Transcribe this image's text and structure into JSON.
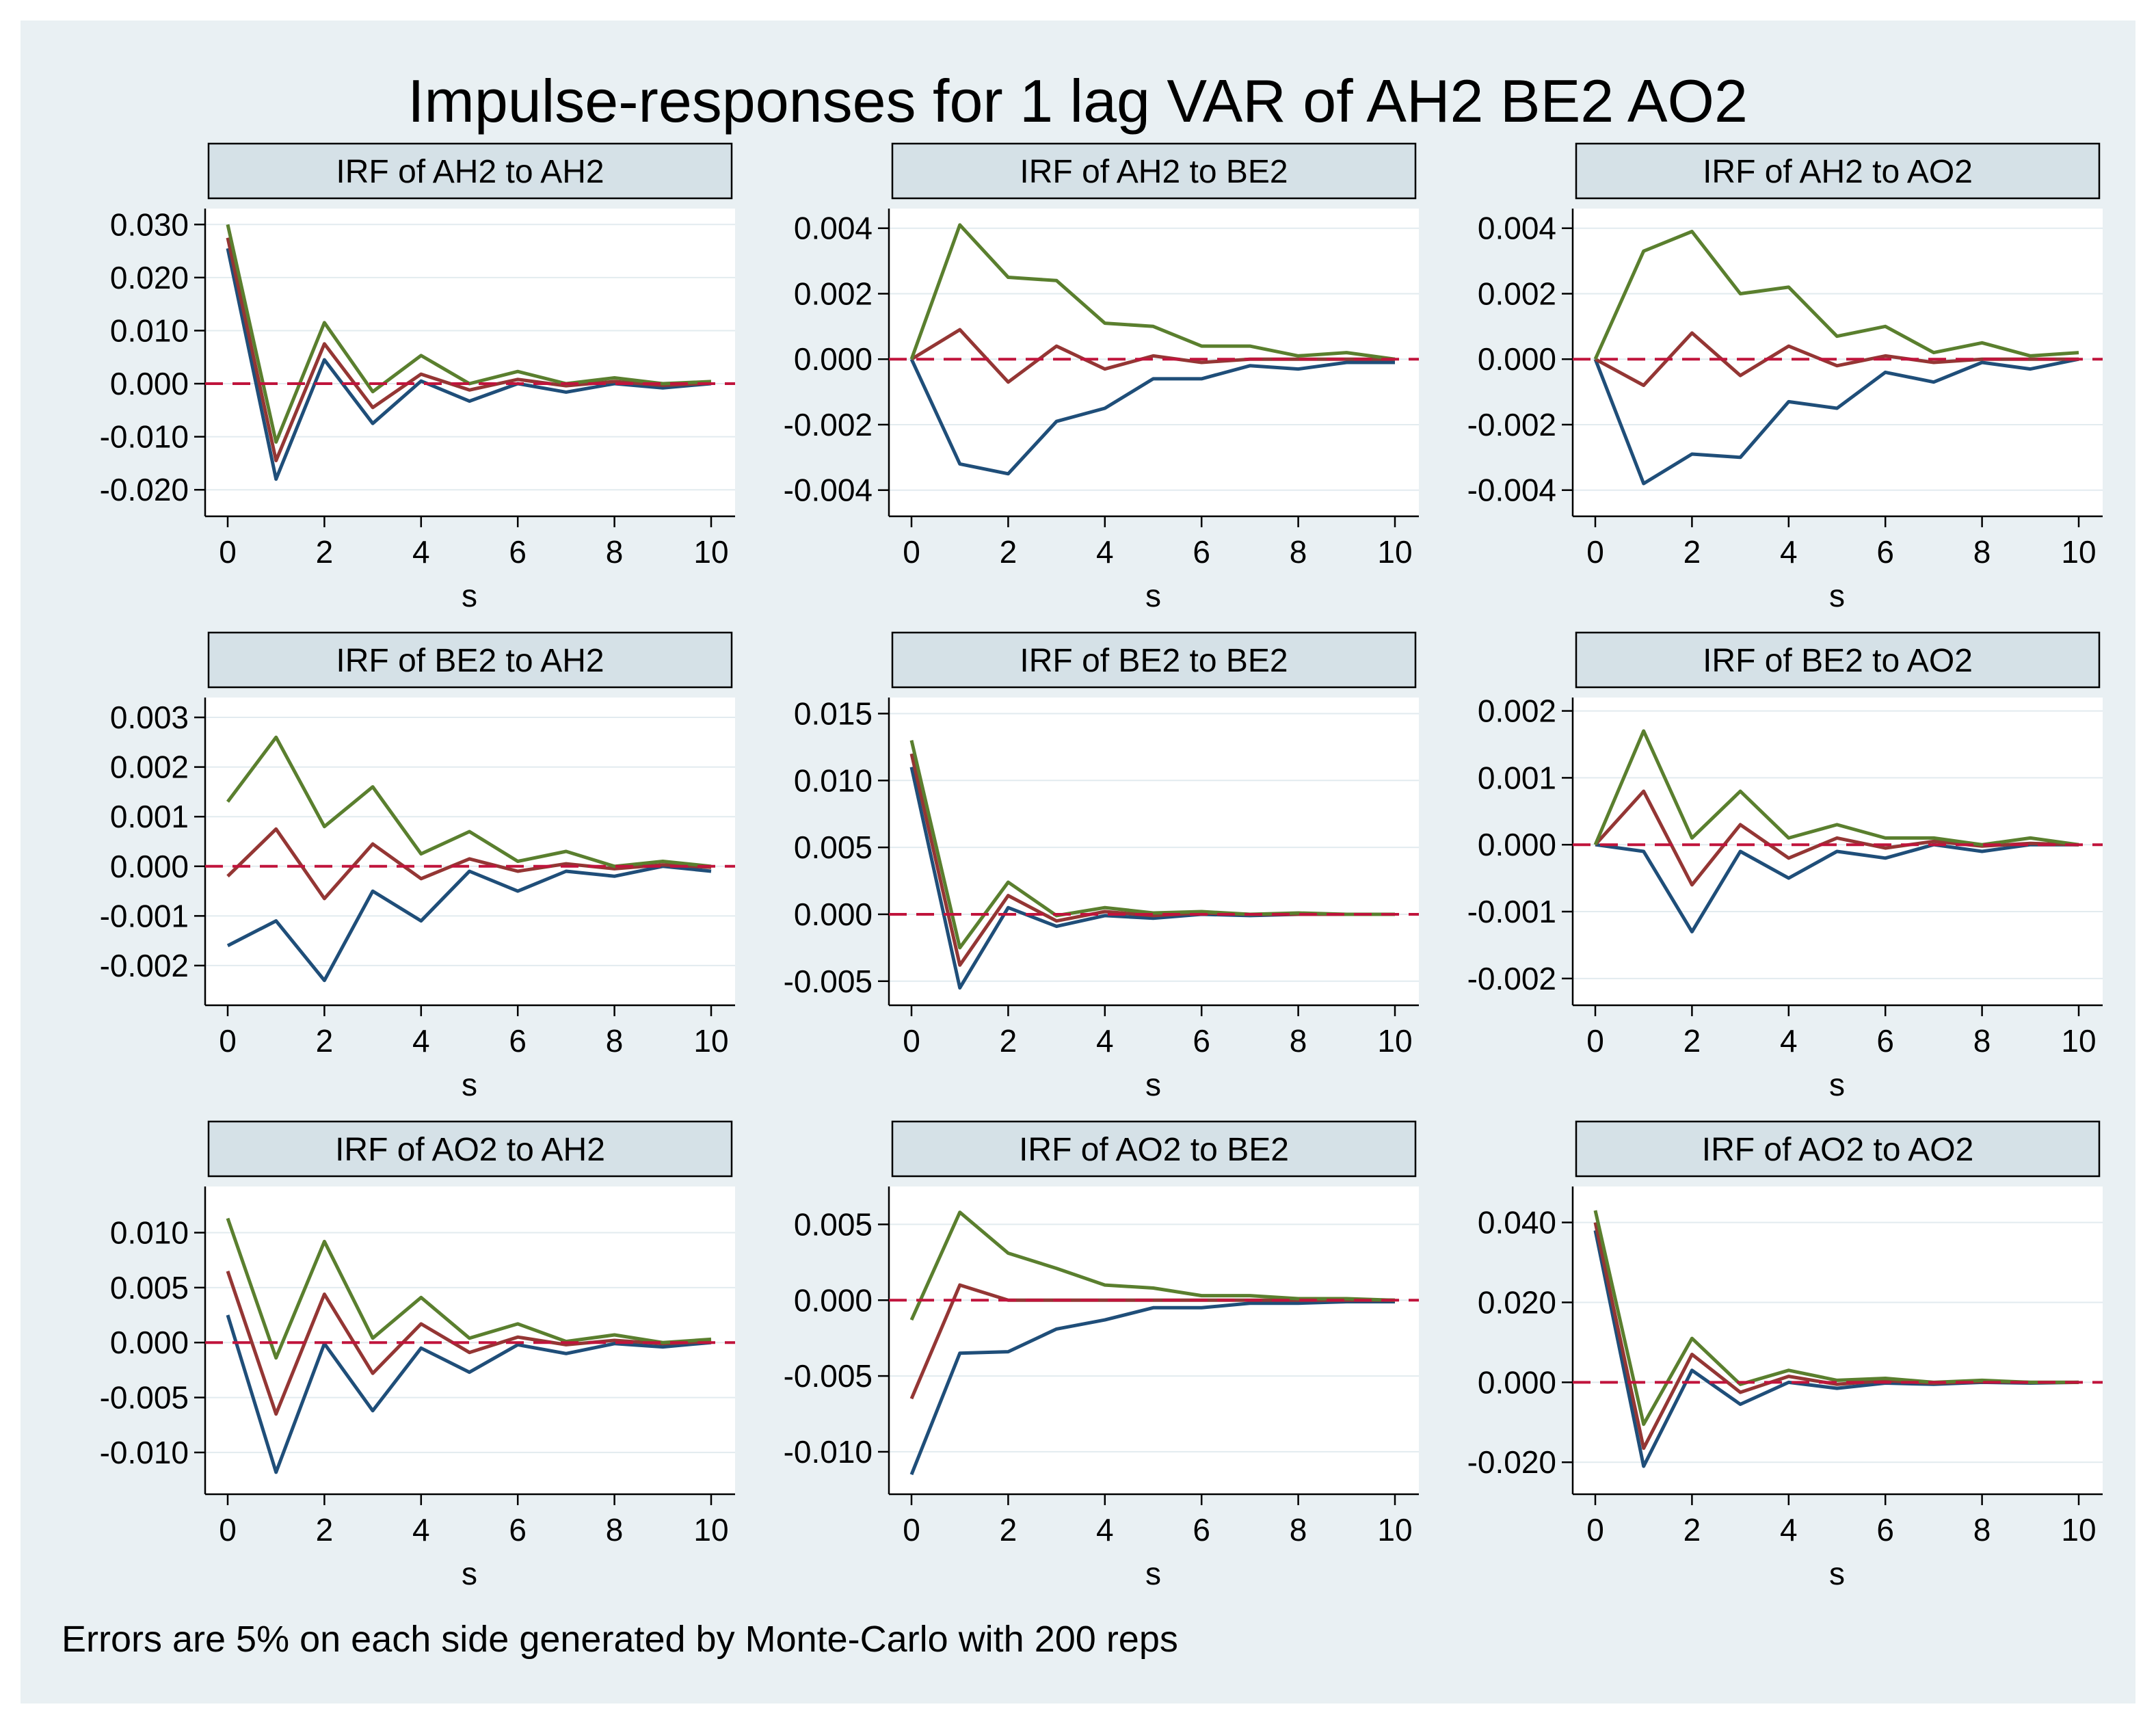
{
  "title": "Impulse-responses for 1 lag VAR of AH2 BE2 AO2",
  "note": "Errors are 5% on each side generated by Monte-Carlo with 200 reps",
  "colors": {
    "background": "#e9f0f3",
    "strip": "#d5e1e7",
    "lower": "#1f4e79",
    "irf": "#943634",
    "upper": "#5a7f2e",
    "zero": "#c0143c"
  },
  "chart_data": [
    {
      "type": "line",
      "title": "IRF of AH2 to AH2",
      "xlabel": "s",
      "x": [
        0,
        1,
        2,
        3,
        4,
        5,
        6,
        7,
        8,
        9,
        10
      ],
      "xticks": [
        0,
        2,
        4,
        6,
        8,
        10
      ],
      "xtick_labels": [
        "0",
        "2",
        "4",
        "6",
        "8",
        "10"
      ],
      "ylim": [
        -0.025,
        0.033
      ],
      "yticks": [
        -0.02,
        -0.01,
        0,
        0.01,
        0.02,
        0.03
      ],
      "ytick_labels": [
        "-0.020",
        "-0.010",
        "0.000",
        "0.010",
        "0.020",
        "0.030"
      ],
      "reference_line": 0,
      "series": [
        {
          "name": "lower",
          "values": [
            0.0255,
            -0.018,
            0.0045,
            -0.0075,
            0.0005,
            -0.0033,
            0.0,
            -0.0016,
            0.0,
            -0.0008,
            0.0
          ]
        },
        {
          "name": "irf",
          "values": [
            0.0275,
            -0.0145,
            0.0075,
            -0.0045,
            0.0018,
            -0.0012,
            0.0008,
            -0.0004,
            0.0004,
            -0.0003,
            0.0001
          ]
        },
        {
          "name": "upper",
          "values": [
            0.03,
            -0.011,
            0.0115,
            -0.0015,
            0.0053,
            0.0,
            0.0023,
            0.0,
            0.0011,
            0.0,
            0.0004
          ]
        }
      ]
    },
    {
      "type": "line",
      "title": "IRF of AH2 to BE2",
      "xlabel": "s",
      "x": [
        0,
        1,
        2,
        3,
        4,
        5,
        6,
        7,
        8,
        9,
        10
      ],
      "xticks": [
        0,
        2,
        4,
        6,
        8,
        10
      ],
      "xtick_labels": [
        "0",
        "2",
        "4",
        "6",
        "8",
        "10"
      ],
      "ylim": [
        -0.0048,
        0.0046
      ],
      "yticks": [
        -0.004,
        -0.002,
        0,
        0.002,
        0.004
      ],
      "ytick_labels": [
        "-0.004",
        "-0.002",
        "0.000",
        "0.002",
        "0.004"
      ],
      "reference_line": 0,
      "series": [
        {
          "name": "lower",
          "values": [
            0.0,
            -0.0032,
            -0.0035,
            -0.0019,
            -0.0015,
            -0.0006,
            -0.0006,
            -0.0002,
            -0.0003,
            -0.0001,
            -0.0001
          ]
        },
        {
          "name": "irf",
          "values": [
            0.0,
            0.0009,
            -0.0007,
            0.0004,
            -0.0003,
            0.0001,
            -0.0001,
            0.0,
            0.0,
            0.0,
            0.0
          ]
        },
        {
          "name": "upper",
          "values": [
            0.0,
            0.0041,
            0.0025,
            0.0024,
            0.0011,
            0.001,
            0.0004,
            0.0004,
            0.0001,
            0.0002,
            0.0
          ]
        }
      ]
    },
    {
      "type": "line",
      "title": "IRF of AH2 to AO2",
      "xlabel": "s",
      "x": [
        0,
        1,
        2,
        3,
        4,
        5,
        6,
        7,
        8,
        9,
        10
      ],
      "xticks": [
        0,
        2,
        4,
        6,
        8,
        10
      ],
      "xtick_labels": [
        "0",
        "2",
        "4",
        "6",
        "8",
        "10"
      ],
      "ylim": [
        -0.0048,
        0.0046
      ],
      "yticks": [
        -0.004,
        -0.002,
        0,
        0.002,
        0.004
      ],
      "ytick_labels": [
        "-0.004",
        "-0.002",
        "0.000",
        "0.002",
        "0.004"
      ],
      "reference_line": 0,
      "series": [
        {
          "name": "lower",
          "values": [
            0.0,
            -0.0038,
            -0.0029,
            -0.003,
            -0.0013,
            -0.0015,
            -0.0004,
            -0.0007,
            -0.0001,
            -0.0003,
            0.0
          ]
        },
        {
          "name": "irf",
          "values": [
            0.0,
            -0.0008,
            0.0008,
            -0.0005,
            0.0004,
            -0.0002,
            0.0001,
            -0.0001,
            0.0,
            0.0,
            0.0
          ]
        },
        {
          "name": "upper",
          "values": [
            0.0,
            0.0033,
            0.0039,
            0.002,
            0.0022,
            0.0007,
            0.001,
            0.0002,
            0.0005,
            0.0001,
            0.0002
          ]
        }
      ]
    },
    {
      "type": "line",
      "title": "IRF of BE2 to AH2",
      "xlabel": "s",
      "x": [
        0,
        1,
        2,
        3,
        4,
        5,
        6,
        7,
        8,
        9,
        10
      ],
      "xticks": [
        0,
        2,
        4,
        6,
        8,
        10
      ],
      "xtick_labels": [
        "0",
        "2",
        "4",
        "6",
        "8",
        "10"
      ],
      "ylim": [
        -0.0028,
        0.0034
      ],
      "yticks": [
        -0.002,
        -0.001,
        0,
        0.001,
        0.002,
        0.003
      ],
      "ytick_labels": [
        "-0.002",
        "-0.001",
        "0.000",
        "0.001",
        "0.002",
        "0.003"
      ],
      "reference_line": 0,
      "series": [
        {
          "name": "lower",
          "values": [
            -0.0016,
            -0.0011,
            -0.0023,
            -0.0005,
            -0.0011,
            -0.0001,
            -0.0005,
            -0.0001,
            -0.0002,
            0.0,
            -0.0001
          ]
        },
        {
          "name": "irf",
          "values": [
            -0.0002,
            0.00075,
            -0.00065,
            0.00045,
            -0.00025,
            0.00015,
            -0.0001,
            5e-05,
            -5e-05,
            3e-05,
            -2e-05
          ]
        },
        {
          "name": "upper",
          "values": [
            0.0013,
            0.0026,
            0.0008,
            0.0016,
            0.00025,
            0.0007,
            0.0001,
            0.0003,
            0.0,
            0.0001,
            0.0
          ]
        }
      ]
    },
    {
      "type": "line",
      "title": "IRF of BE2 to BE2",
      "xlabel": "s",
      "x": [
        0,
        1,
        2,
        3,
        4,
        5,
        6,
        7,
        8,
        9,
        10
      ],
      "xticks": [
        0,
        2,
        4,
        6,
        8,
        10
      ],
      "xtick_labels": [
        "0",
        "2",
        "4",
        "6",
        "8",
        "10"
      ],
      "ylim": [
        -0.0068,
        0.0162
      ],
      "yticks": [
        -0.005,
        0,
        0.005,
        0.01,
        0.015
      ],
      "ytick_labels": [
        "-0.005",
        "0.000",
        "0.005",
        "0.010",
        "0.015"
      ],
      "reference_line": 0,
      "series": [
        {
          "name": "lower",
          "values": [
            0.011,
            -0.0055,
            0.0005,
            -0.0009,
            -0.0001,
            -0.0003,
            0.0,
            -0.0001,
            0.0,
            0.0,
            0.0
          ]
        },
        {
          "name": "irf",
          "values": [
            0.012,
            -0.0038,
            0.0014,
            -0.0005,
            0.0002,
            -0.0001,
            0.0001,
            0.0,
            0.0,
            0.0,
            0.0
          ]
        },
        {
          "name": "upper",
          "values": [
            0.013,
            -0.0025,
            0.0024,
            -0.0001,
            0.0005,
            0.0001,
            0.0002,
            0.0,
            0.0001,
            0.0,
            0.0
          ]
        }
      ]
    },
    {
      "type": "line",
      "title": "IRF of BE2 to AO2",
      "xlabel": "s",
      "x": [
        0,
        1,
        2,
        3,
        4,
        5,
        6,
        7,
        8,
        9,
        10
      ],
      "xticks": [
        0,
        2,
        4,
        6,
        8,
        10
      ],
      "xtick_labels": [
        "0",
        "2",
        "4",
        "6",
        "8",
        "10"
      ],
      "ylim": [
        -0.0024,
        0.0022
      ],
      "yticks": [
        -0.002,
        -0.001,
        0,
        0.001,
        0.002
      ],
      "ytick_labels": [
        "-0.002",
        "-0.001",
        "0.000",
        "0.001",
        "0.002"
      ],
      "reference_line": 0,
      "series": [
        {
          "name": "lower",
          "values": [
            0.0,
            -0.0001,
            -0.0013,
            -0.0001,
            -0.0005,
            -0.0001,
            -0.0002,
            0.0,
            -0.0001,
            0.0,
            0.0
          ]
        },
        {
          "name": "irf",
          "values": [
            0.0,
            0.0008,
            -0.0006,
            0.0003,
            -0.0002,
            0.0001,
            -5e-05,
            5e-05,
            -2e-05,
            2e-05,
            0.0
          ]
        },
        {
          "name": "upper",
          "values": [
            0.0,
            0.0017,
            0.0001,
            0.0008,
            0.0001,
            0.0003,
            0.0001,
            0.0001,
            0.0,
            0.0001,
            0.0
          ]
        }
      ]
    },
    {
      "type": "line",
      "title": "IRF of AO2 to AH2",
      "xlabel": "s",
      "x": [
        0,
        1,
        2,
        3,
        4,
        5,
        6,
        7,
        8,
        9,
        10
      ],
      "xticks": [
        0,
        2,
        4,
        6,
        8,
        10
      ],
      "xtick_labels": [
        "0",
        "2",
        "4",
        "6",
        "8",
        "10"
      ],
      "ylim": [
        -0.0138,
        0.0142
      ],
      "yticks": [
        -0.01,
        -0.005,
        0,
        0.005,
        0.01
      ],
      "ytick_labels": [
        "-0.010",
        "-0.005",
        "0.000",
        "0.005",
        "0.010"
      ],
      "reference_line": 0,
      "series": [
        {
          "name": "lower",
          "values": [
            0.0025,
            -0.0118,
            -0.0001,
            -0.0062,
            -0.0005,
            -0.0027,
            -0.0002,
            -0.001,
            -0.0001,
            -0.0004,
            0.0
          ]
        },
        {
          "name": "irf",
          "values": [
            0.0065,
            -0.0065,
            0.0044,
            -0.0028,
            0.0017,
            -0.0009,
            0.0005,
            -0.0002,
            0.0002,
            -0.0001,
            0.0001
          ]
        },
        {
          "name": "upper",
          "values": [
            0.0113,
            -0.0014,
            0.0092,
            0.0004,
            0.0041,
            0.0004,
            0.0017,
            0.0001,
            0.0007,
            0.0,
            0.0003
          ]
        }
      ]
    },
    {
      "type": "line",
      "title": "IRF of AO2 to BE2",
      "xlabel": "s",
      "x": [
        0,
        1,
        2,
        3,
        4,
        5,
        6,
        7,
        8,
        9,
        10
      ],
      "xticks": [
        0,
        2,
        4,
        6,
        8,
        10
      ],
      "xtick_labels": [
        "0",
        "2",
        "4",
        "6",
        "8",
        "10"
      ],
      "ylim": [
        -0.0128,
        0.0075
      ],
      "yticks": [
        -0.01,
        -0.005,
        0,
        0.005
      ],
      "ytick_labels": [
        "-0.010",
        "-0.005",
        "0.000",
        "0.005"
      ],
      "reference_line": 0,
      "series": [
        {
          "name": "lower",
          "values": [
            -0.0115,
            -0.0035,
            -0.0034,
            -0.0019,
            -0.0013,
            -0.0005,
            -0.0005,
            -0.0002,
            -0.0002,
            -0.0001,
            -0.0001
          ]
        },
        {
          "name": "irf",
          "values": [
            -0.0065,
            0.001,
            0.0,
            0.0,
            0.0,
            0.0,
            0.0,
            0.0,
            0.0,
            0.0,
            0.0
          ]
        },
        {
          "name": "upper",
          "values": [
            -0.0013,
            0.0058,
            0.0031,
            0.0021,
            0.001,
            0.0008,
            0.0003,
            0.0003,
            0.0001,
            0.0001,
            0.0
          ]
        }
      ]
    },
    {
      "type": "line",
      "title": "IRF of AO2 to AO2",
      "xlabel": "s",
      "x": [
        0,
        1,
        2,
        3,
        4,
        5,
        6,
        7,
        8,
        9,
        10
      ],
      "xticks": [
        0,
        2,
        4,
        6,
        8,
        10
      ],
      "xtick_labels": [
        "0",
        "2",
        "4",
        "6",
        "8",
        "10"
      ],
      "ylim": [
        -0.028,
        0.049
      ],
      "yticks": [
        -0.02,
        0,
        0.02,
        0.04
      ],
      "ytick_labels": [
        "-0.020",
        "0.000",
        "0.020",
        "0.040"
      ],
      "reference_line": 0,
      "series": [
        {
          "name": "lower",
          "values": [
            0.038,
            -0.021,
            0.003,
            -0.0055,
            0.0,
            -0.0015,
            -0.0002,
            -0.0005,
            0.0,
            -0.0002,
            0.0
          ]
        },
        {
          "name": "irf",
          "values": [
            0.04,
            -0.0165,
            0.007,
            -0.0025,
            0.0015,
            -0.0005,
            0.0004,
            -0.0002,
            0.0002,
            0.0,
            0.0
          ]
        },
        {
          "name": "upper",
          "values": [
            0.043,
            -0.0105,
            0.011,
            -0.0005,
            0.003,
            0.0005,
            0.001,
            0.0,
            0.0005,
            0.0,
            0.0
          ]
        }
      ]
    }
  ]
}
